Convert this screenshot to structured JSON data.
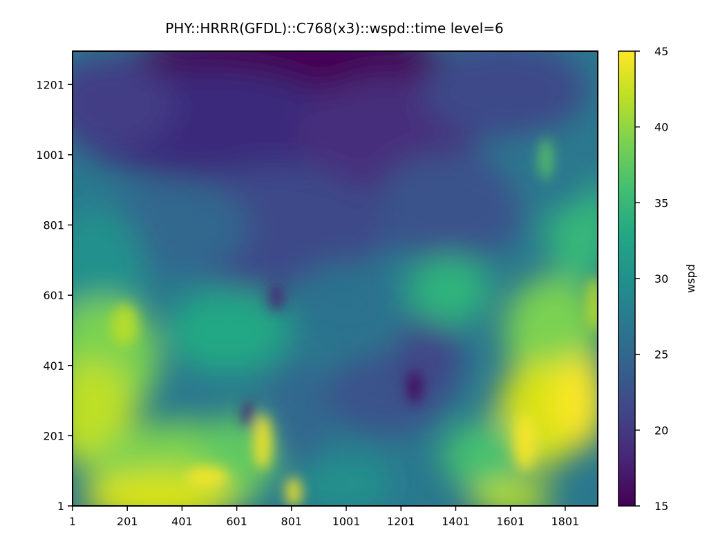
{
  "chart_data": {
    "type": "heatmap",
    "title": "PHY::HRRR(GFDL)::C768(x3)::wspd::time level=6",
    "xlabel": "",
    "ylabel": "",
    "x_ticks": [
      "1",
      "201",
      "401",
      "601",
      "801",
      "1001",
      "1201",
      "1401",
      "1601",
      "1801"
    ],
    "y_ticks": [
      "1",
      "201",
      "401",
      "601",
      "801",
      "1001",
      "1201"
    ],
    "xlim": [
      1,
      1920
    ],
    "ylim": [
      1,
      1296
    ],
    "colorbar": {
      "label": "wspd",
      "colormap": "viridis",
      "vmin": 15,
      "vmax": 45,
      "ticks": [
        "15",
        "20",
        "25",
        "30",
        "35",
        "40",
        "45"
      ]
    },
    "field_description": "wind speed field: high values (35-45) in lower-left and lower-right regions, low values (15-22) in upper-center region, mid values (25-33) elsewhere"
  }
}
